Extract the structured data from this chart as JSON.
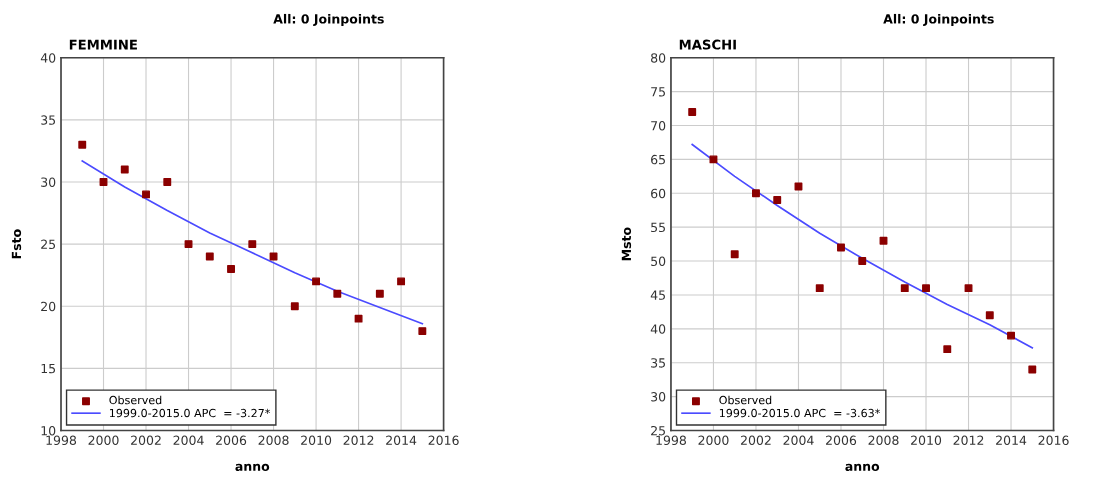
{
  "chart_data": [
    {
      "type": "scatter",
      "title": "All: 0 Joinpoints",
      "subtitle": "FEMMINE",
      "xlabel": "anno",
      "ylabel": "Fsto",
      "xlim": [
        1998,
        2016
      ],
      "xticks": [
        1998,
        2000,
        2002,
        2004,
        2006,
        2008,
        2010,
        2012,
        2014,
        2016
      ],
      "ylim": [
        10,
        40
      ],
      "yticks": [
        10,
        15,
        20,
        25,
        30,
        35,
        40
      ],
      "grid": true,
      "legend": "bottom left",
      "series": [
        {
          "name": "Observed",
          "marker": "square",
          "color": "#8b0000",
          "x": [
            1999,
            2000,
            2001,
            2002,
            2003,
            2004,
            2005,
            2006,
            2007,
            2008,
            2009,
            2010,
            2011,
            2012,
            2013,
            2014,
            2015
          ],
          "values": [
            33,
            30,
            31,
            29,
            30,
            25,
            24,
            23,
            25,
            24,
            20,
            22,
            21,
            19,
            21,
            22,
            18
          ]
        },
        {
          "name": "1999.0-2015.0 APC  = -3.27*",
          "type": "line",
          "marker": "none",
          "color": "#4b4bff",
          "x": [
            1999,
            2001,
            2003,
            2005,
            2007,
            2009,
            2011,
            2013,
            2015
          ],
          "values": [
            31.7,
            29.6,
            27.7,
            25.9,
            24.3,
            22.7,
            21.2,
            19.9,
            18.6
          ]
        }
      ]
    },
    {
      "type": "scatter",
      "title": "All: 0 Joinpoints",
      "subtitle": "MASCHI",
      "xlabel": "anno",
      "ylabel": "Msto",
      "xlim": [
        1998,
        2016
      ],
      "xticks": [
        1998,
        2000,
        2002,
        2004,
        2006,
        2008,
        2010,
        2012,
        2014,
        2016
      ],
      "ylim": [
        25,
        80
      ],
      "yticks": [
        25,
        30,
        35,
        40,
        45,
        50,
        55,
        60,
        65,
        70,
        75,
        80
      ],
      "grid": true,
      "legend": "bottom left",
      "series": [
        {
          "name": "Observed",
          "marker": "square",
          "color": "#8b0000",
          "x": [
            1999,
            2000,
            2001,
            2002,
            2003,
            2004,
            2005,
            2006,
            2007,
            2008,
            2009,
            2010,
            2011,
            2012,
            2013,
            2014,
            2015
          ],
          "values": [
            72,
            65,
            51,
            60,
            59,
            61,
            46,
            52,
            50,
            53,
            46,
            46,
            37,
            46,
            42,
            39,
            34
          ]
        },
        {
          "name": "1999.0-2015.0 APC  = -3.63*",
          "type": "line",
          "marker": "none",
          "color": "#4b4bff",
          "x": [
            1999,
            2001,
            2003,
            2005,
            2007,
            2009,
            2011,
            2013,
            2015
          ],
          "values": [
            67.2,
            62.5,
            58.2,
            54.1,
            50.4,
            46.9,
            43.6,
            40.6,
            37.2
          ]
        }
      ]
    }
  ]
}
